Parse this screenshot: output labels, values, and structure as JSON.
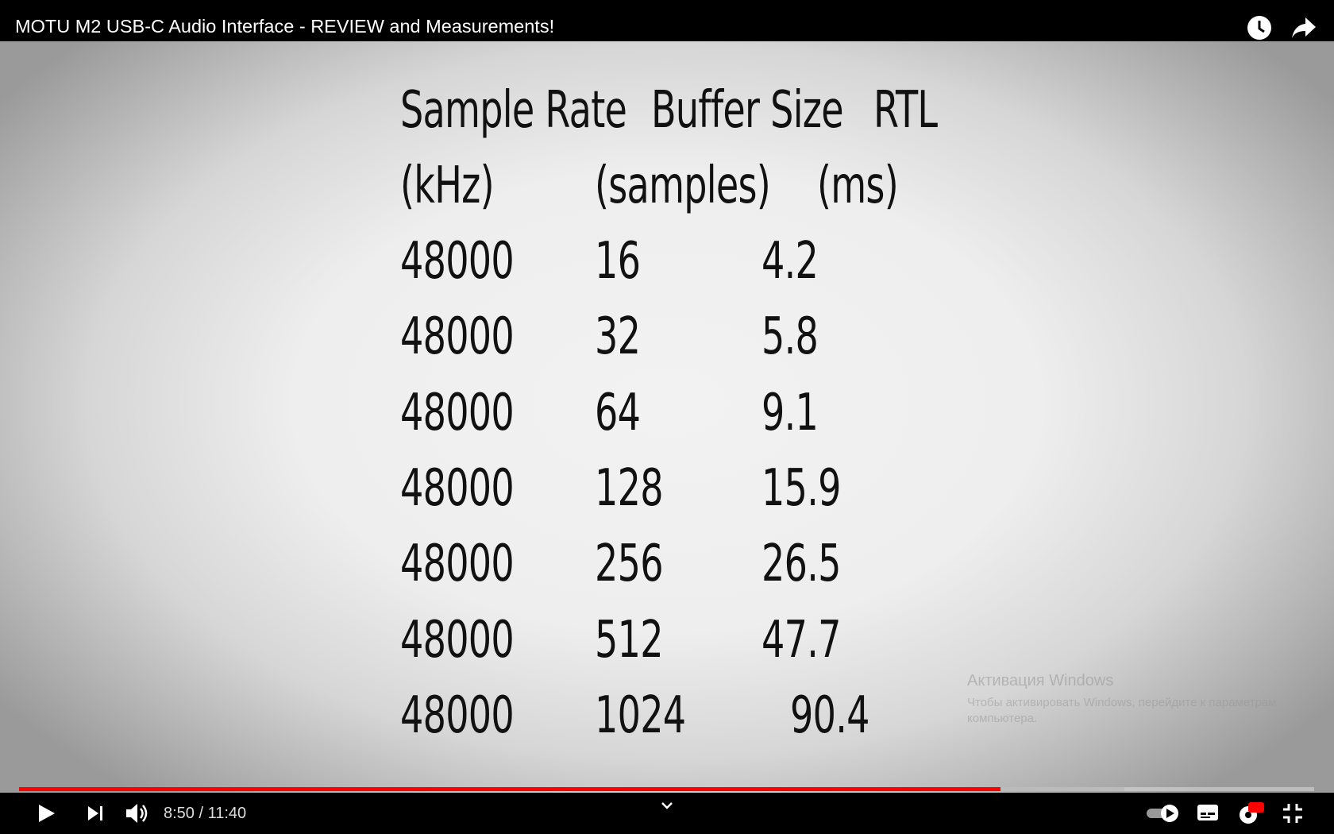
{
  "header": {
    "title": "MOTU M2 USB-C Audio Interface - REVIEW and Measurements!"
  },
  "table": {
    "header": [
      [
        "Sample Rate",
        "Buffer Size",
        "RTL"
      ],
      [
        "(kHz)",
        "(samples)",
        "(ms)"
      ]
    ],
    "rows": [
      [
        "48000",
        "16",
        "4.2"
      ],
      [
        "48000",
        "32",
        "5.8"
      ],
      [
        "48000",
        "64",
        "9.1"
      ],
      [
        "48000",
        "128",
        "15.9"
      ],
      [
        "48000",
        "256",
        "26.5"
      ],
      [
        "48000",
        "512",
        "47.7"
      ],
      [
        "48000",
        "1024",
        "90.4"
      ]
    ]
  },
  "watermark": {
    "title": "Активация Windows",
    "text": "Чтобы активировать Windows, перейдите к параметрам компьютера."
  },
  "player": {
    "time": "8:50 / 11:40"
  }
}
